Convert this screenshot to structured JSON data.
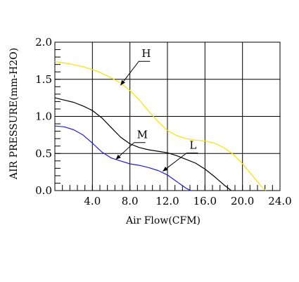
{
  "chart_data": {
    "type": "line",
    "title": "",
    "xlabel": "Air Flow(CFM)",
    "ylabel": "AIR PRESSURE(mm-H2O)",
    "xlim": [
      0,
      24
    ],
    "ylim": [
      0,
      2.0
    ],
    "x_ticks": [
      4,
      8,
      12,
      16,
      20,
      24
    ],
    "x_tick_labels": [
      "4.0",
      "8.0",
      "12.0",
      "16.0",
      "20.0",
      "24.0"
    ],
    "y_ticks": [
      0,
      0.5,
      1.0,
      1.5,
      2.0
    ],
    "y_tick_labels": [
      "0.0",
      "0.5",
      "1.0",
      "1.5",
      "2.0"
    ],
    "grid": true,
    "series": [
      {
        "name": "H",
        "color": "#f5e400",
        "points": [
          [
            0,
            1.74
          ],
          [
            1.5,
            1.71
          ],
          [
            3,
            1.67
          ],
          [
            4.5,
            1.61
          ],
          [
            6,
            1.52
          ],
          [
            7,
            1.45
          ],
          [
            8,
            1.35
          ],
          [
            9,
            1.22
          ],
          [
            10,
            1.07
          ],
          [
            11,
            0.93
          ],
          [
            12,
            0.81
          ],
          [
            13,
            0.74
          ],
          [
            14,
            0.7
          ],
          [
            15,
            0.68
          ],
          [
            16,
            0.67
          ],
          [
            17,
            0.64
          ],
          [
            18,
            0.58
          ],
          [
            19,
            0.49
          ],
          [
            20,
            0.36
          ],
          [
            21,
            0.21
          ],
          [
            22,
            0.06
          ],
          [
            22.5,
            0.0
          ]
        ]
      },
      {
        "name": "M",
        "color": "#000000",
        "points": [
          [
            0,
            1.25
          ],
          [
            1,
            1.22
          ],
          [
            2,
            1.19
          ],
          [
            3,
            1.14
          ],
          [
            4,
            1.08
          ],
          [
            5,
            0.98
          ],
          [
            6,
            0.85
          ],
          [
            7,
            0.72
          ],
          [
            8,
            0.63
          ],
          [
            9,
            0.58
          ],
          [
            10,
            0.55
          ],
          [
            11,
            0.53
          ],
          [
            12,
            0.51
          ],
          [
            13,
            0.47
          ],
          [
            14,
            0.42
          ],
          [
            15,
            0.37
          ],
          [
            16,
            0.29
          ],
          [
            17,
            0.19
          ],
          [
            18,
            0.08
          ],
          [
            18.8,
            0.0
          ]
        ]
      },
      {
        "name": "L",
        "color": "#1f1fd0",
        "points": [
          [
            0,
            0.87
          ],
          [
            1,
            0.86
          ],
          [
            2,
            0.82
          ],
          [
            3,
            0.75
          ],
          [
            4,
            0.64
          ],
          [
            5,
            0.52
          ],
          [
            6,
            0.44
          ],
          [
            7,
            0.4
          ],
          [
            8,
            0.36
          ],
          [
            9,
            0.34
          ],
          [
            10,
            0.31
          ],
          [
            11,
            0.27
          ],
          [
            12,
            0.21
          ],
          [
            13,
            0.12
          ],
          [
            14,
            0.03
          ],
          [
            14.5,
            0.0
          ]
        ]
      }
    ],
    "annotations": [
      {
        "text": "H",
        "series": "H",
        "at": [
          7,
          1.42
        ]
      },
      {
        "text": "M",
        "series": "M",
        "at": [
          6.5,
          0.42
        ]
      },
      {
        "text": "L",
        "series": "L",
        "at": [
          11.5,
          0.26
        ]
      }
    ]
  }
}
